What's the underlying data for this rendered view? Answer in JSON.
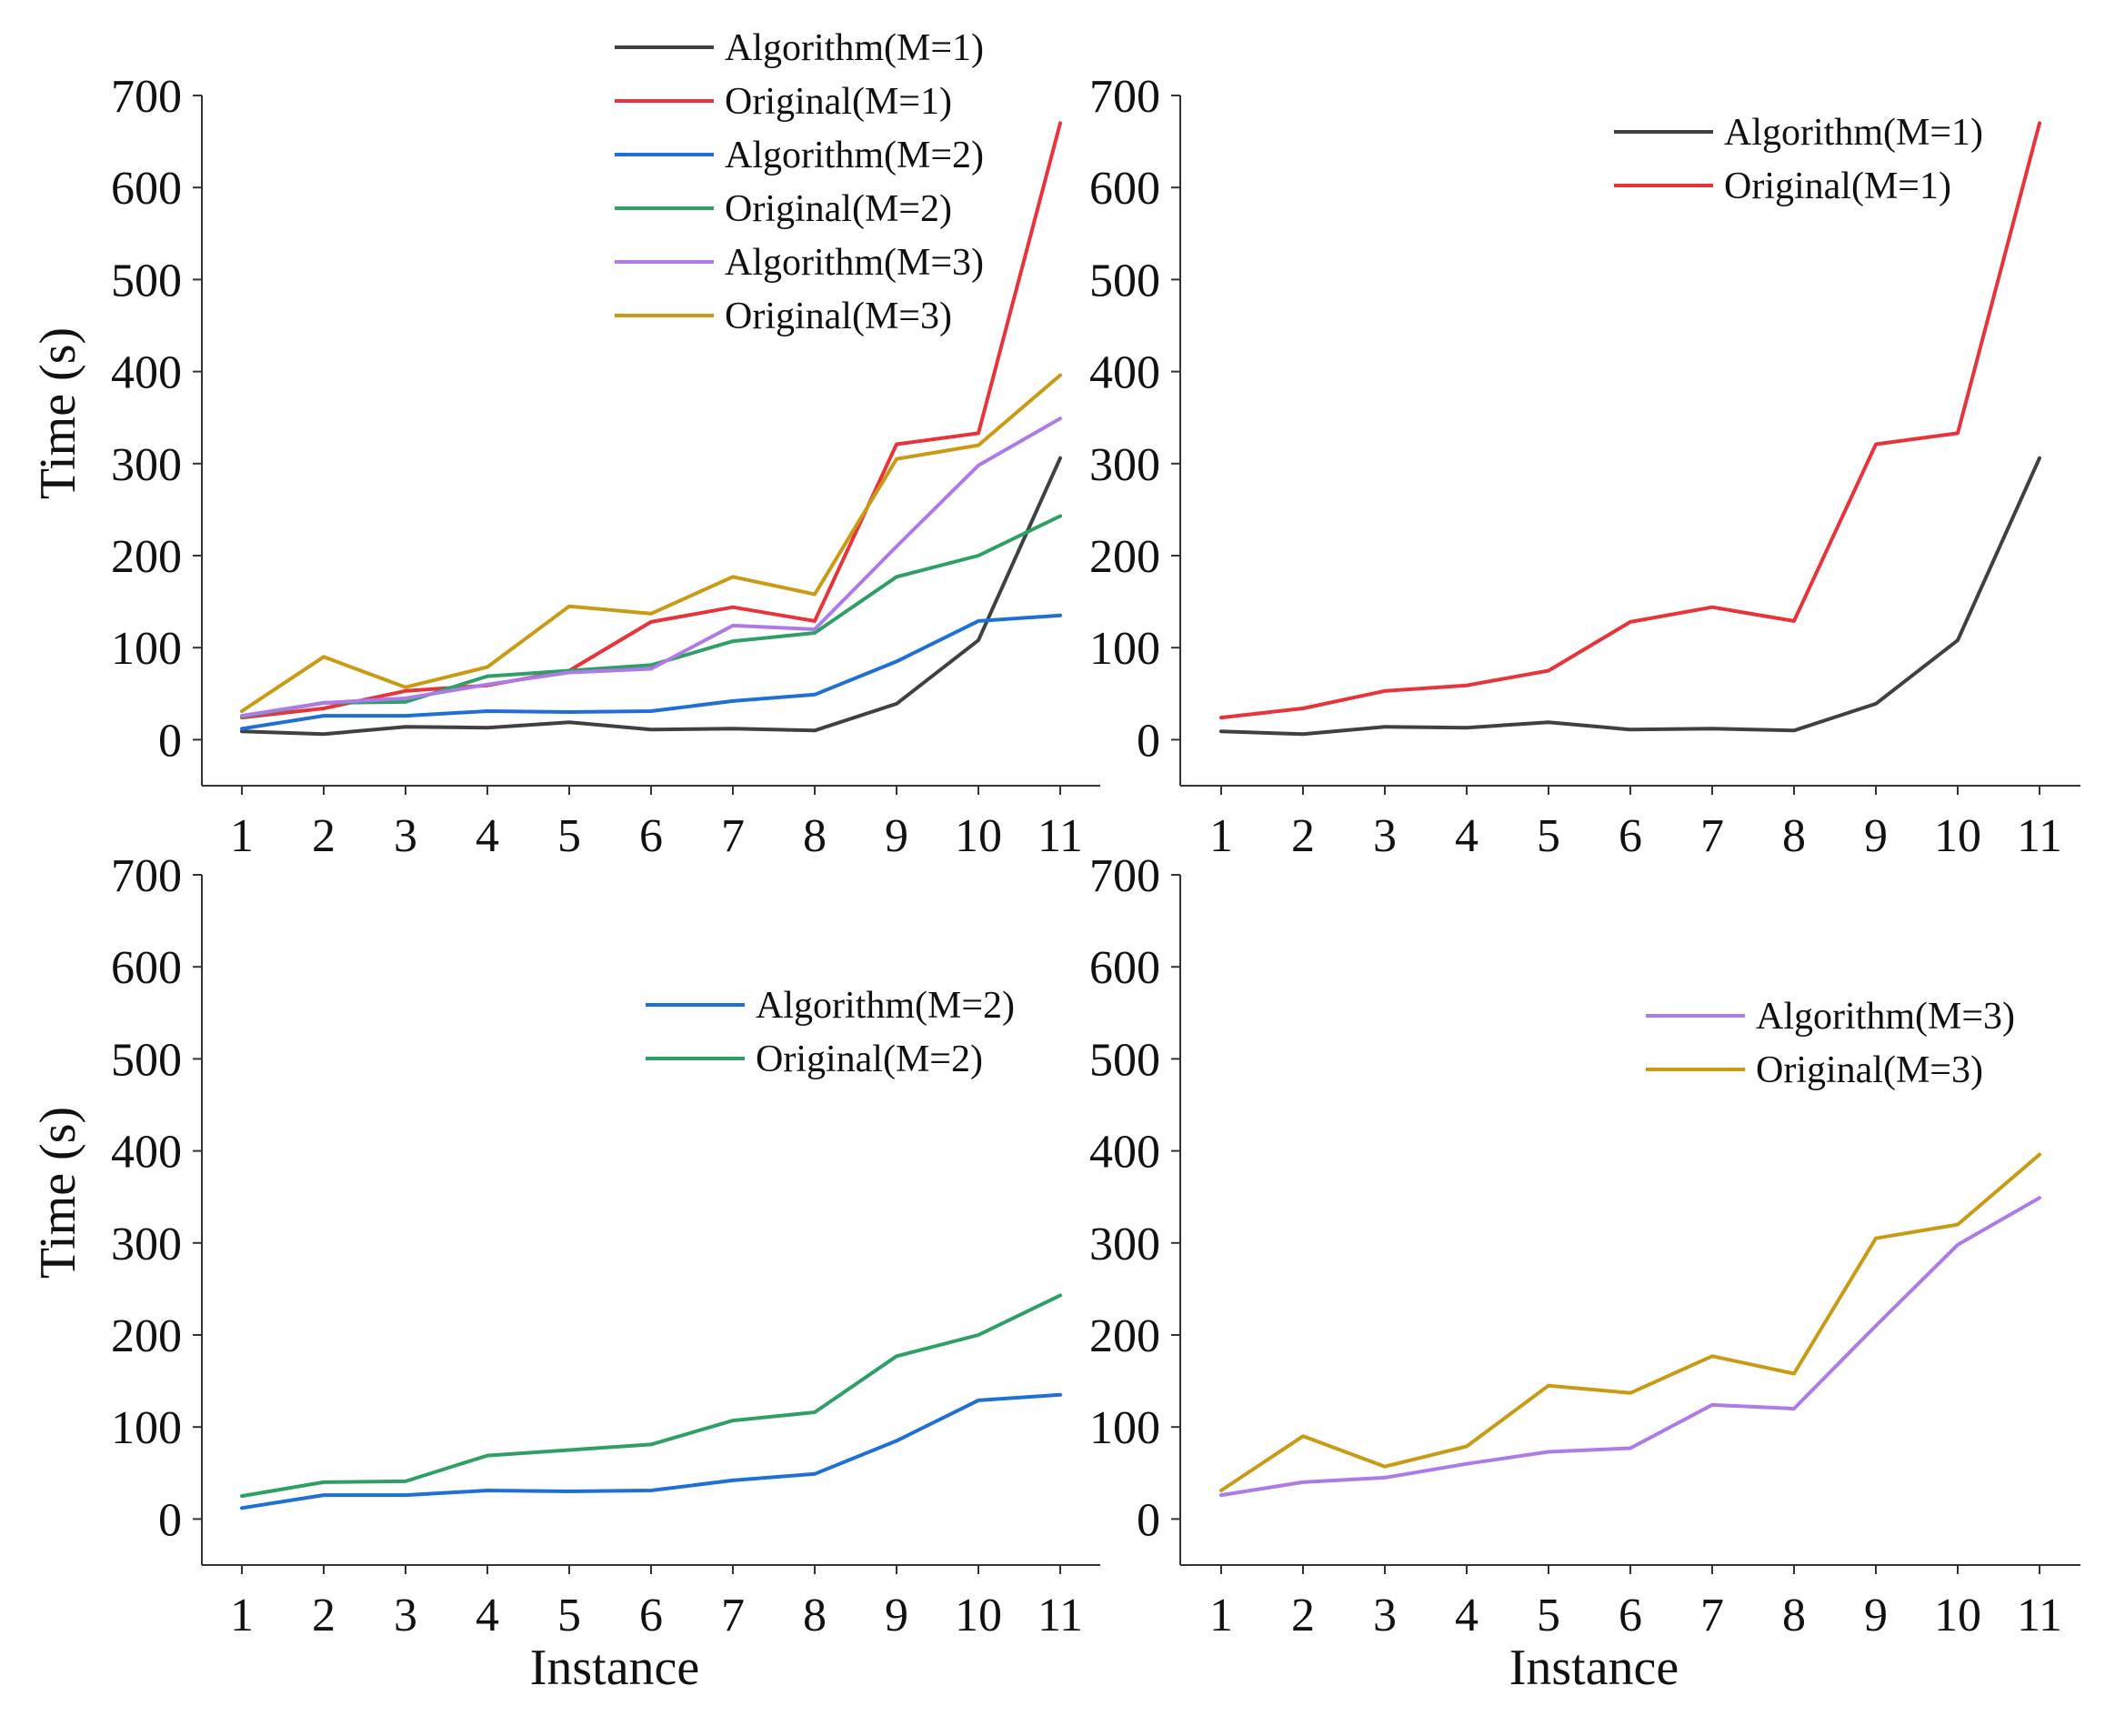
{
  "figure": {
    "xlabel": "Instance",
    "ylabel": "Time (s)"
  },
  "colors": {
    "Algorithm(M=1)": "#404040",
    "Original(M=1)": "#e8333a",
    "Algorithm(M=2)": "#1f6fd6",
    "Original(M=2)": "#2fa065",
    "Algorithm(M=3)": "#ad7ae8",
    "Original(M=3)": "#c99a14"
  },
  "chart_data": [
    {
      "type": "line",
      "panel": "top-left",
      "categories": [
        "1",
        "2",
        "3",
        "4",
        "5",
        "6",
        "7",
        "8",
        "9",
        "10",
        "11"
      ],
      "ylim": [
        -50,
        700
      ],
      "yticks": [
        "0",
        "100",
        "200",
        "300",
        "400",
        "500",
        "600",
        "700"
      ],
      "ylabel": "Time (s)",
      "xlabel": "",
      "legend_position": "top-center",
      "series": [
        {
          "name": "Algorithm(M=1)",
          "values": [
            9,
            6,
            14,
            13,
            19,
            11,
            12,
            10,
            39,
            108,
            306
          ]
        },
        {
          "name": "Original(M=1)",
          "values": [
            24,
            34,
            53,
            59,
            75,
            128,
            144,
            129,
            321,
            333,
            670
          ]
        },
        {
          "name": "Algorithm(M=2)",
          "values": [
            12,
            26,
            26,
            31,
            30,
            31,
            42,
            49,
            85,
            129,
            135
          ]
        },
        {
          "name": "Original(M=2)",
          "values": [
            25,
            40,
            41,
            69,
            75,
            81,
            107,
            116,
            177,
            200,
            243
          ]
        },
        {
          "name": "Algorithm(M=3)",
          "values": [
            26,
            40,
            45,
            60,
            73,
            77,
            124,
            120,
            210,
            298,
            349
          ]
        },
        {
          "name": "Original(M=3)",
          "values": [
            31,
            90,
            57,
            79,
            145,
            137,
            177,
            158,
            305,
            320,
            396
          ]
        }
      ]
    },
    {
      "type": "line",
      "panel": "top-right",
      "categories": [
        "1",
        "2",
        "3",
        "4",
        "5",
        "6",
        "7",
        "8",
        "9",
        "10",
        "11"
      ],
      "ylim": [
        -50,
        700
      ],
      "yticks": [
        "0",
        "100",
        "200",
        "300",
        "400",
        "500",
        "600",
        "700"
      ],
      "xlabel": "",
      "legend_position": "top-right",
      "series": [
        {
          "name": "Algorithm(M=1)",
          "values": [
            9,
            6,
            14,
            13,
            19,
            11,
            12,
            10,
            39,
            108,
            306
          ]
        },
        {
          "name": "Original(M=1)",
          "values": [
            24,
            34,
            53,
            59,
            75,
            128,
            144,
            129,
            321,
            333,
            670
          ]
        }
      ]
    },
    {
      "type": "line",
      "panel": "bottom-left",
      "categories": [
        "1",
        "2",
        "3",
        "4",
        "5",
        "6",
        "7",
        "8",
        "9",
        "10",
        "11"
      ],
      "ylim": [
        -50,
        700
      ],
      "yticks": [
        "0",
        "100",
        "200",
        "300",
        "400",
        "500",
        "600",
        "700"
      ],
      "ylabel": "Time (s)",
      "xlabel": "Instance",
      "legend_position": "upper-right",
      "series": [
        {
          "name": "Algorithm(M=2)",
          "values": [
            12,
            26,
            26,
            31,
            30,
            31,
            42,
            49,
            85,
            129,
            135
          ]
        },
        {
          "name": "Original(M=2)",
          "values": [
            25,
            40,
            41,
            69,
            75,
            81,
            107,
            116,
            177,
            200,
            243
          ]
        }
      ]
    },
    {
      "type": "line",
      "panel": "bottom-right",
      "categories": [
        "1",
        "2",
        "3",
        "4",
        "5",
        "6",
        "7",
        "8",
        "9",
        "10",
        "11"
      ],
      "ylim": [
        -50,
        700
      ],
      "yticks": [
        "0",
        "100",
        "200",
        "300",
        "400",
        "500",
        "600",
        "700"
      ],
      "xlabel": "Instance",
      "legend_position": "upper-right",
      "series": [
        {
          "name": "Algorithm(M=3)",
          "values": [
            26,
            40,
            45,
            60,
            73,
            77,
            124,
            120,
            210,
            298,
            349
          ]
        },
        {
          "name": "Original(M=3)",
          "values": [
            31,
            90,
            57,
            79,
            145,
            137,
            177,
            158,
            305,
            320,
            396
          ]
        }
      ]
    }
  ]
}
